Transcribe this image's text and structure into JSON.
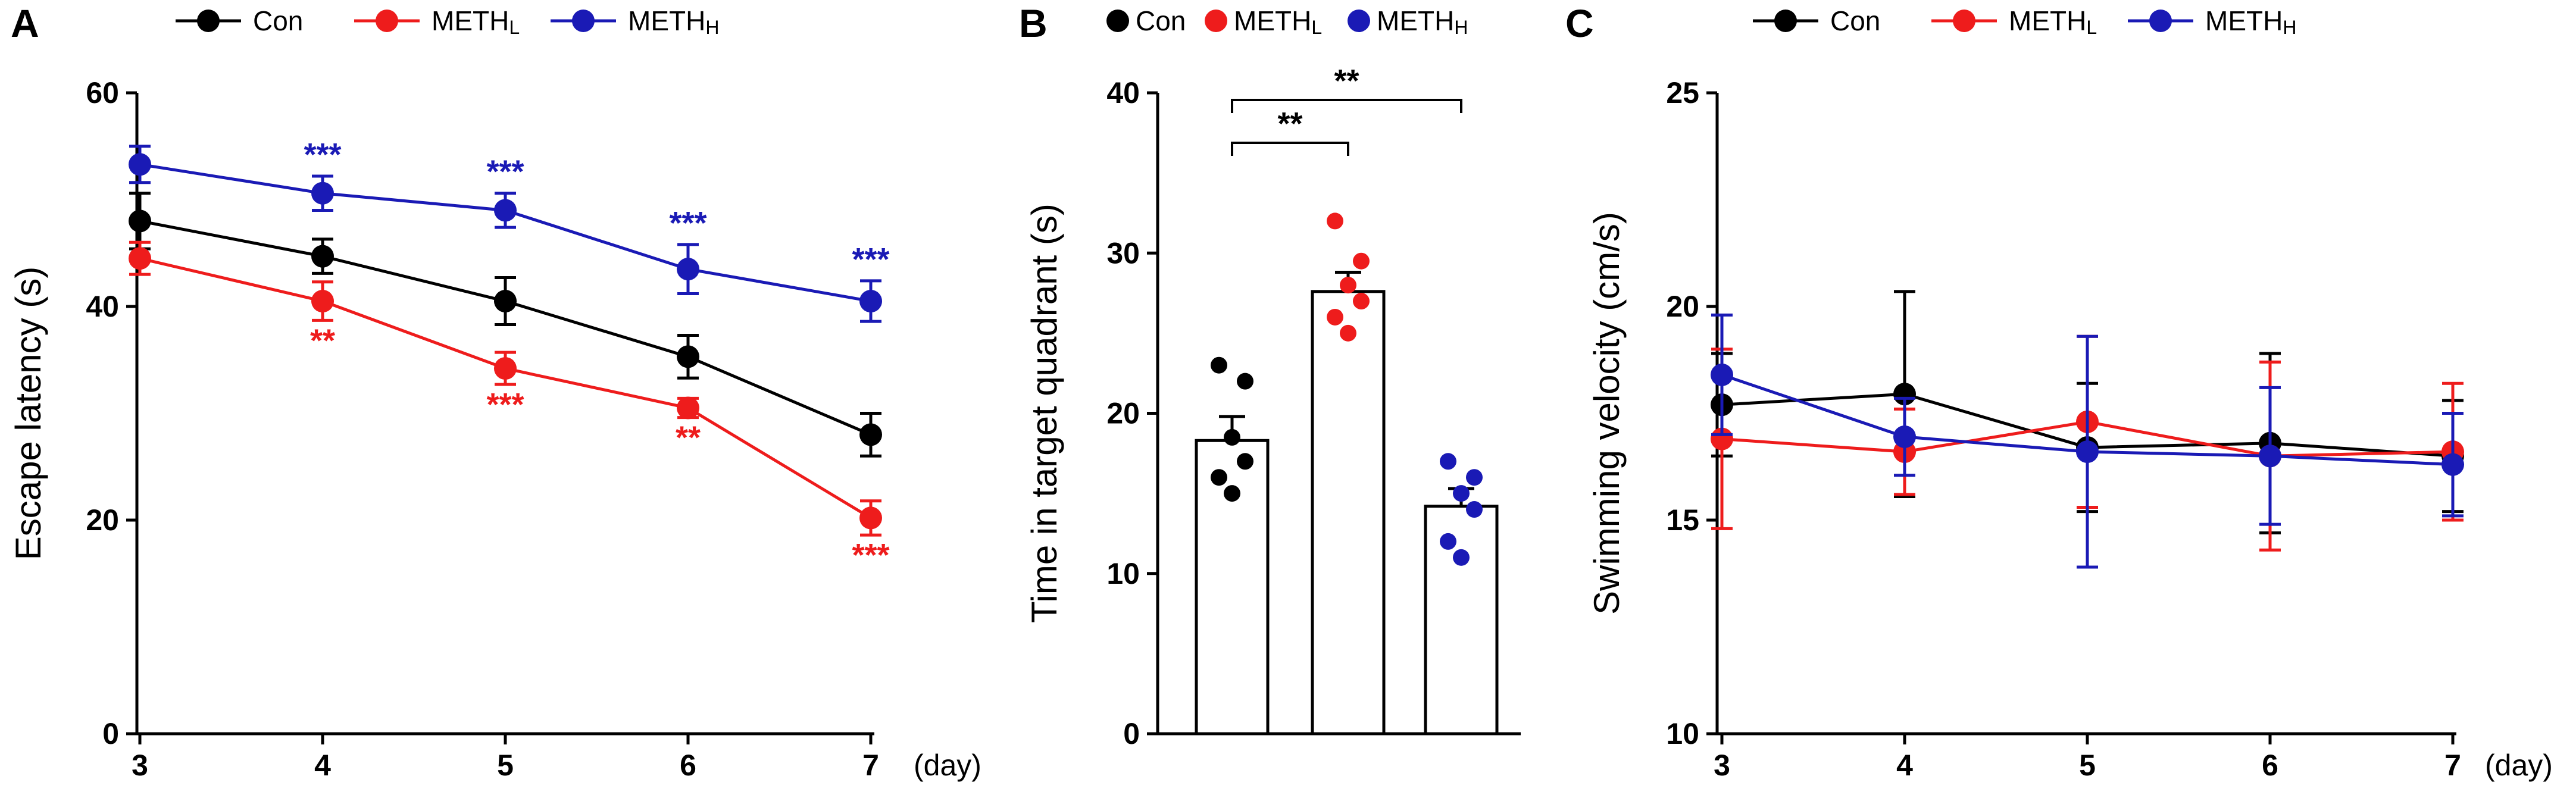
{
  "chart_data": [
    {
      "panel": "A",
      "type": "line",
      "ylabel": "Escape latency (s)",
      "x_unit": "(day)",
      "x": [
        3,
        4,
        5,
        6,
        7
      ],
      "ylim": [
        0,
        60
      ],
      "yticks": [
        0,
        20,
        40,
        60
      ],
      "series": [
        {
          "name": "Con",
          "sub": "",
          "color": "#000000",
          "values": [
            48,
            44.7,
            40.5,
            35.3,
            28
          ],
          "errors": [
            2.6,
            1.6,
            2.2,
            2.0,
            2.0
          ],
          "stars": [
            "",
            "",
            "",
            "",
            ""
          ]
        },
        {
          "name": "METH",
          "sub": "L",
          "color": "#ee1c1c",
          "values": [
            44.5,
            40.5,
            34.2,
            30.5,
            20.2
          ],
          "errors": [
            1.5,
            1.8,
            1.5,
            0.9,
            1.6
          ],
          "stars": [
            "",
            "**",
            "***",
            "**",
            "***"
          ]
        },
        {
          "name": "METH",
          "sub": "H",
          "color": "#1a1ab5",
          "values": [
            53.3,
            50.6,
            49,
            43.5,
            40.5
          ],
          "errors": [
            1.7,
            1.6,
            1.6,
            2.3,
            1.9
          ],
          "stars": [
            "",
            "***",
            "***",
            "***",
            "***"
          ]
        }
      ]
    },
    {
      "panel": "B",
      "type": "bar",
      "ylabel": "Time in target quadrant (s)",
      "ylim": [
        0,
        40
      ],
      "yticks": [
        0,
        10,
        20,
        30,
        40
      ],
      "categories": [
        "Con",
        "METH",
        "METH"
      ],
      "category_subs": [
        "",
        "L",
        "H"
      ],
      "colors": [
        "#000000",
        "#ee1c1c",
        "#1a1ab5"
      ],
      "values": [
        18.3,
        27.6,
        14.2
      ],
      "errors": [
        1.5,
        1.2,
        1.1
      ],
      "points": [
        [
          23,
          22,
          18.5,
          17,
          16,
          15
        ],
        [
          32,
          29.5,
          28,
          27,
          26,
          25
        ],
        [
          17,
          16,
          15,
          14,
          12,
          11
        ]
      ],
      "comparisons": [
        {
          "from": 0,
          "to": 1,
          "label": "**"
        },
        {
          "from": 0,
          "to": 2,
          "label": "**"
        }
      ]
    },
    {
      "panel": "C",
      "type": "line",
      "ylabel": "Swimming velocity (cm/s)",
      "x_unit": "(day)",
      "x": [
        3,
        4,
        5,
        6,
        7
      ],
      "ylim": [
        10,
        25
      ],
      "yticks": [
        10,
        15,
        20,
        25
      ],
      "series": [
        {
          "name": "Con",
          "sub": "",
          "color": "#000000",
          "values": [
            17.7,
            17.95,
            16.7,
            16.8,
            16.5
          ],
          "errors": [
            1.2,
            2.4,
            1.5,
            2.1,
            1.3
          ],
          "stars": [
            "",
            "",
            "",
            "",
            ""
          ]
        },
        {
          "name": "METH",
          "sub": "L",
          "color": "#ee1c1c",
          "values": [
            16.9,
            16.6,
            17.3,
            16.5,
            16.6
          ],
          "errors": [
            2.1,
            1.0,
            2.0,
            2.2,
            1.6
          ],
          "stars": [
            "",
            "",
            "",
            "",
            ""
          ]
        },
        {
          "name": "METH",
          "sub": "H",
          "color": "#1a1ab5",
          "values": [
            18.4,
            16.95,
            16.6,
            16.5,
            16.3
          ],
          "errors": [
            1.4,
            0.9,
            2.7,
            1.6,
            1.2
          ],
          "stars": [
            "",
            "",
            "",
            "",
            ""
          ]
        }
      ]
    }
  ]
}
